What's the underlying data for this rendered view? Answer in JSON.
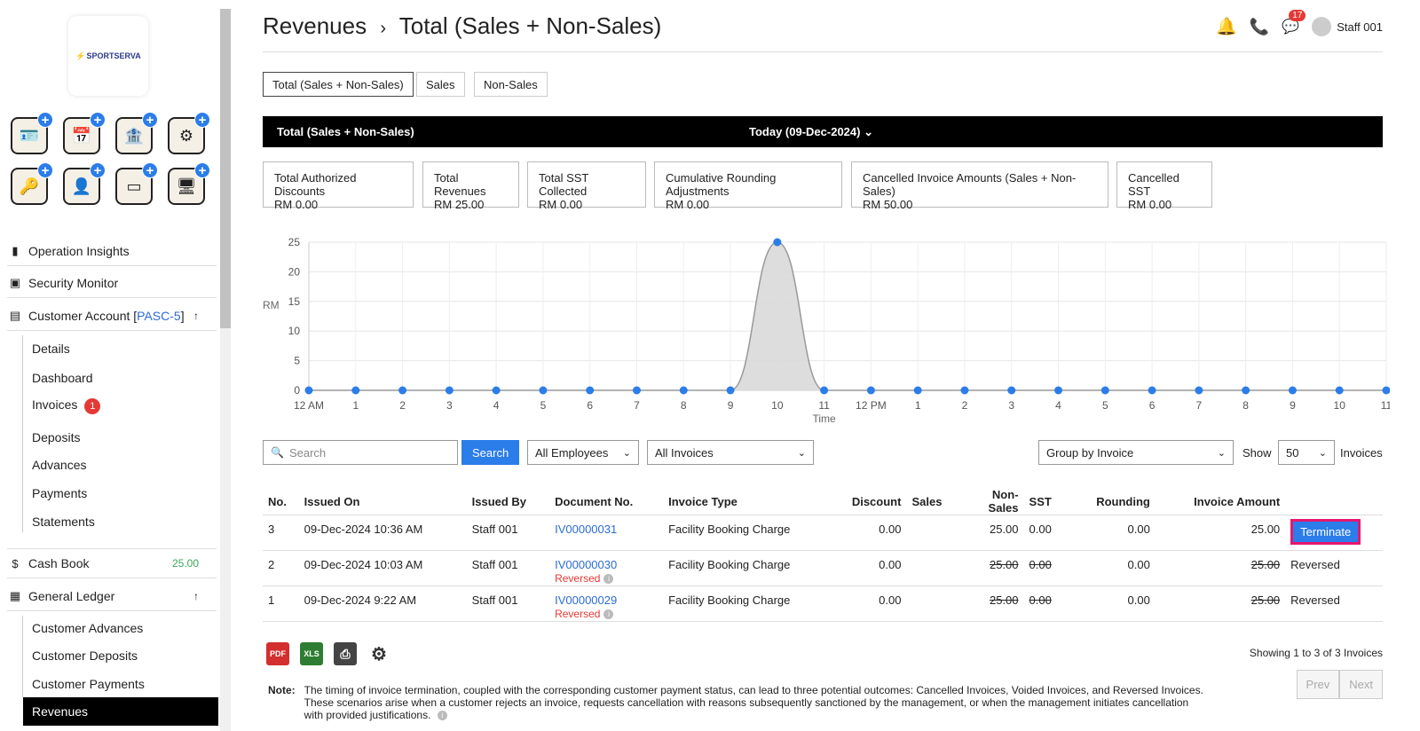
{
  "sidebar": {
    "logo_text": "SPORTSERVA",
    "tile_icons": [
      "id-card-icon",
      "calendar-icon",
      "bank-icon",
      "devices-icon",
      "key-card-icon",
      "staff-icon",
      "card-reader-icon",
      "login-screen-icon"
    ],
    "nav": {
      "operation_insights": "Operation Insights",
      "security_monitor": "Security Monitor",
      "customer_account": "Customer Account [",
      "customer_code": "PASC-5",
      "customer_close": "]",
      "cash_book": "Cash Book",
      "cash_book_value": "25.00",
      "general_ledger": "General Ledger"
    },
    "customer_sub": [
      "Details",
      "Dashboard",
      "Invoices",
      "Deposits",
      "Advances",
      "Payments",
      "Statements"
    ],
    "invoices_badge": "1",
    "ledger_sub": [
      "Customer Advances",
      "Customer Deposits",
      "Customer Payments"
    ],
    "active_sub": "Revenues"
  },
  "header": {
    "crumb1": "Revenues",
    "sep": "›",
    "crumb2": "Total (Sales + Non-Sales)",
    "notif_badge": "17",
    "user": "Staff 001"
  },
  "tabs": [
    "Total (Sales + Non-Sales)",
    "Sales",
    "Non-Sales"
  ],
  "bar": {
    "left": "Total (Sales + Non-Sales)",
    "date": "Today (09-Dec-2024)",
    "chev": "⌄"
  },
  "stats": [
    {
      "label": "Total Authorized Discounts",
      "value": "RM 0.00"
    },
    {
      "label": "Total Revenues",
      "value": "RM 25.00"
    },
    {
      "label": "Total SST Collected",
      "value": "RM 0.00"
    },
    {
      "label": "Cumulative Rounding Adjustments",
      "value": "RM 0.00"
    },
    {
      "label": "Cancelled Invoice Amounts (Sales + Non-Sales)",
      "value": "RM 50.00"
    },
    {
      "label": "Cancelled SST",
      "value": "RM 0.00"
    }
  ],
  "chart_data": {
    "type": "area",
    "ylabel": "RM",
    "xlabel": "Time",
    "ylim": [
      0,
      25
    ],
    "yticks": [
      0,
      5,
      10,
      15,
      20,
      25
    ],
    "categories": [
      "12 AM",
      "1",
      "2",
      "3",
      "4",
      "5",
      "6",
      "7",
      "8",
      "9",
      "10",
      "11",
      "12 PM",
      "1",
      "2",
      "3",
      "4",
      "5",
      "6",
      "7",
      "8",
      "9",
      "10",
      "11"
    ],
    "values": [
      0,
      0,
      0,
      0,
      0,
      0,
      0,
      0,
      0,
      0,
      25,
      0,
      0,
      0,
      0,
      0,
      0,
      0,
      0,
      0,
      0,
      0,
      0,
      0
    ],
    "grid": true,
    "colors": {
      "line": "#999999",
      "fill": "#d9d9d9",
      "point": "#2b7de9"
    }
  },
  "controls": {
    "search_placeholder": "Search",
    "search_button": "Search",
    "employees": "All Employees",
    "invoices_filter": "All Invoices",
    "group": "Group by Invoice",
    "show_label": "Show",
    "show_value": "50",
    "invoices_label": "Invoices"
  },
  "table": {
    "headers": [
      "No.",
      "Issued On",
      "Issued By",
      "Document No.",
      "Invoice Type",
      "Discount",
      "Sales",
      "Non-Sales",
      "SST",
      "Rounding",
      "Invoice Amount"
    ],
    "rows": [
      {
        "no": "3",
        "issued_on": "09-Dec-2024 10:36 AM",
        "issued_by": "Staff 001",
        "doc": "IV00000031",
        "type": "Facility Booking Charge",
        "discount": "0.00",
        "sales": "",
        "nonsales": "25.00",
        "sst": "0.00",
        "rounding": "0.00",
        "amount": "25.00",
        "action": "Terminate",
        "reversed": ""
      },
      {
        "no": "2",
        "issued_on": "09-Dec-2024 10:03 AM",
        "issued_by": "Staff 001",
        "doc": "IV00000030",
        "type": "Facility Booking Charge",
        "discount": "0.00",
        "sales": "",
        "nonsales": "25.00",
        "sst": "0.00",
        "rounding": "0.00",
        "amount": "25.00",
        "action": "Reversed",
        "reversed": "Reversed"
      },
      {
        "no": "1",
        "issued_on": "09-Dec-2024 9:22 AM",
        "issued_by": "Staff 001",
        "doc": "IV00000029",
        "type": "Facility Booking Charge",
        "discount": "0.00",
        "sales": "",
        "nonsales": "25.00",
        "sst": "0.00",
        "rounding": "0.00",
        "amount": "25.00",
        "action": "Reversed",
        "reversed": "Reversed"
      }
    ]
  },
  "footer": {
    "showing": "Showing 1 to 3 of 3 Invoices",
    "prev": "Prev",
    "next": "Next",
    "note_label": "Note:",
    "note_text": "The timing of invoice termination, coupled with the corresponding customer payment status, can lead to three potential outcomes: Cancelled Invoices, Voided Invoices, and Reversed Invoices. These scenarios arise when a customer rejects an invoice, requests cancellation with reasons subsequently sanctioned by the management, or when the management initiates cancellation with provided justifications.",
    "export_icons": [
      "pdf-icon",
      "xls-icon",
      "print-icon",
      "settings-icon"
    ]
  }
}
